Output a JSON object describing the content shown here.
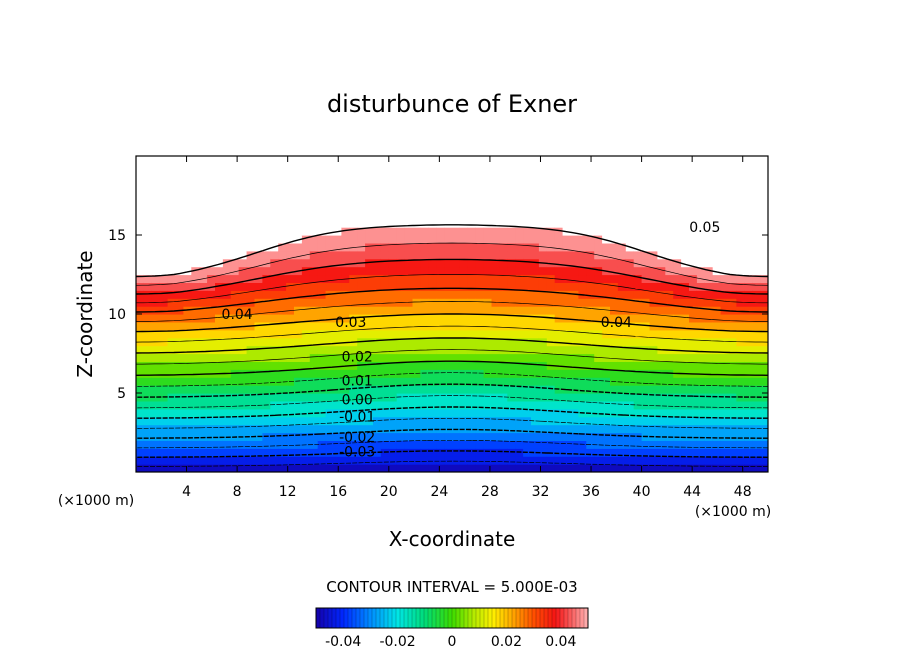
{
  "chart_data": {
    "type": "heatmap",
    "title": "disturbunce of Exner",
    "xlabel": "X-coordinate",
    "ylabel": "Z-coordinate",
    "x_unit": "(×1000 m)",
    "xlim": [
      0,
      50
    ],
    "ylim": [
      0,
      20
    ],
    "x_ticks": [
      "4",
      "8",
      "12",
      "16",
      "20",
      "24",
      "28",
      "32",
      "36",
      "40",
      "44",
      "48"
    ],
    "y_ticks": [
      "5",
      "10",
      "15"
    ],
    "contour_interval": "CONTOUR INTERVAL = 5.000E-03",
    "contour_labels": [
      {
        "text": "0.05",
        "x": 45.0,
        "y": 15.5
      },
      {
        "text": "0.04",
        "x": 8.0,
        "y": 10.0
      },
      {
        "text": "0.04",
        "x": 38.0,
        "y": 9.5
      },
      {
        "text": "0.03",
        "x": 17.0,
        "y": 9.5
      },
      {
        "text": "0.02",
        "x": 17.5,
        "y": 7.3
      },
      {
        "text": "0.01",
        "x": 17.5,
        "y": 5.8
      },
      {
        "text": "0.00",
        "x": 17.5,
        "y": 4.6
      },
      {
        "text": "-0.01",
        "x": 17.5,
        "y": 3.5
      },
      {
        "text": "-0.02",
        "x": 17.5,
        "y": 2.2
      },
      {
        "text": "-0.03",
        "x": 17.5,
        "y": 1.3
      }
    ],
    "colorbar": {
      "min": -0.05,
      "max": 0.05,
      "ticks": [
        "-0.04",
        "-0.02",
        "0",
        "0.02",
        "0.04"
      ]
    }
  }
}
